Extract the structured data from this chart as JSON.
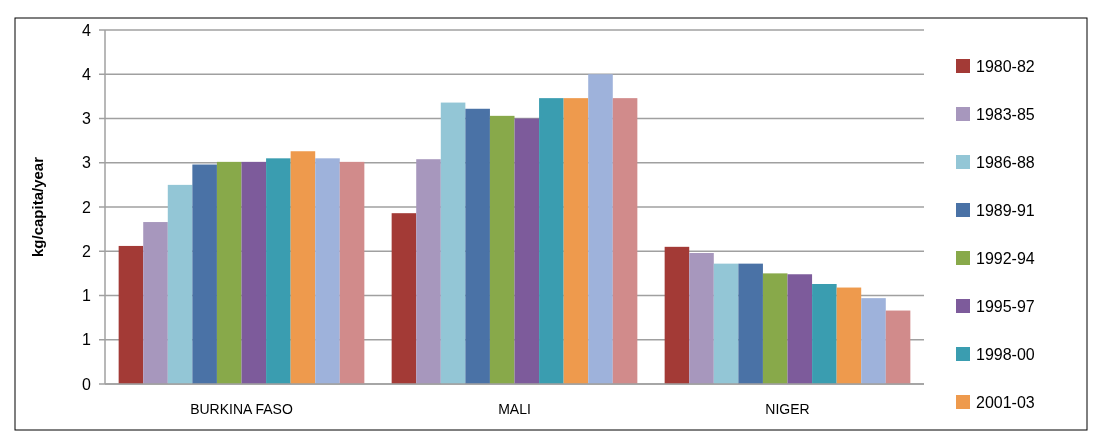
{
  "chart_data": {
    "type": "bar",
    "ylabel": "kg/capita/year",
    "categories": [
      "BURKINA FASO",
      "MALI",
      "NIGER"
    ],
    "series": [
      {
        "name": "1980-82",
        "color": "#a33a36",
        "values": [
          1.56,
          1.93,
          1.55
        ]
      },
      {
        "name": "1983-85",
        "color": "#a797bd",
        "values": [
          1.83,
          2.54,
          1.48
        ]
      },
      {
        "name": "1986-88",
        "color": "#93c6d6",
        "values": [
          2.25,
          3.18,
          1.36
        ]
      },
      {
        "name": "1989-91",
        "color": "#4a72a6",
        "values": [
          2.48,
          3.11,
          1.36
        ]
      },
      {
        "name": "1992-94",
        "color": "#88a94a",
        "values": [
          2.51,
          3.03,
          1.25
        ]
      },
      {
        "name": "1995-97",
        "color": "#7d5b9b",
        "values": [
          2.51,
          3.0,
          1.24
        ]
      },
      {
        "name": "1998-00",
        "color": "#3a9db0",
        "values": [
          2.55,
          3.23,
          1.13
        ]
      },
      {
        "name": "2001-03",
        "color": "#ee9a4d",
        "values": [
          2.63,
          3.23,
          1.09
        ]
      },
      {
        "color": "#9eb2db",
        "values": [
          2.55,
          3.5,
          0.97
        ]
      },
      {
        "color": "#d18b8b",
        "values": [
          2.51,
          3.23,
          0.83
        ]
      }
    ],
    "ylim": [
      0,
      4
    ],
    "yticks": [
      0,
      {
        "value": 0.5,
        "label": "1"
      },
      1,
      {
        "value": 1.5,
        "label": "2"
      },
      2,
      {
        "value": 2.5,
        "label": "3"
      },
      3,
      {
        "value": 3.5,
        "label": "4"
      },
      4
    ],
    "grid": "y",
    "legend": "right"
  }
}
